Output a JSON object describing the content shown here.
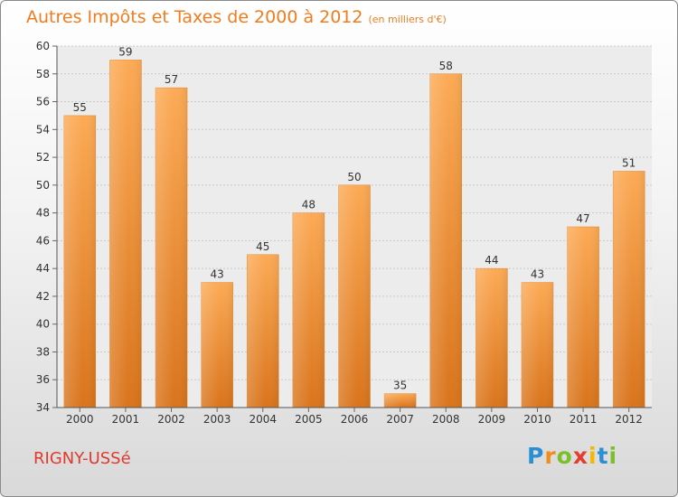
{
  "header": {
    "title": "Autres Impôts et Taxes de 2000 à 2012",
    "unit": "(en milliers d'€)"
  },
  "footer": {
    "city": "RIGNY-USSé",
    "logo_letters": [
      "P",
      "r",
      "o",
      "x",
      "i",
      "t",
      "i"
    ],
    "logo_colors": [
      "#2b8fd6",
      "#f28c1a",
      "#7bbf2a",
      "#e63b2e",
      "#f5b800",
      "#2b8fd6",
      "#7bbf2a"
    ]
  },
  "colors": {
    "bar_light": "#fcaa55",
    "bar_dark": "#d9741c",
    "title": "#f07c1e",
    "city": "#e03a2c"
  },
  "chart_data": {
    "type": "bar",
    "title": "Autres Impôts et Taxes de 2000 à 2012",
    "xlabel": "",
    "ylabel": "",
    "categories": [
      "2000",
      "2001",
      "2002",
      "2003",
      "2004",
      "2005",
      "2006",
      "2007",
      "2008",
      "2009",
      "2010",
      "2011",
      "2012"
    ],
    "values": [
      55,
      59,
      57,
      43,
      45,
      48,
      50,
      35,
      58,
      44,
      43,
      47,
      51
    ],
    "ylim": [
      34,
      60
    ],
    "yticks": [
      34,
      36,
      38,
      40,
      42,
      44,
      46,
      48,
      50,
      52,
      54,
      56,
      58,
      60
    ],
    "grid": true
  }
}
